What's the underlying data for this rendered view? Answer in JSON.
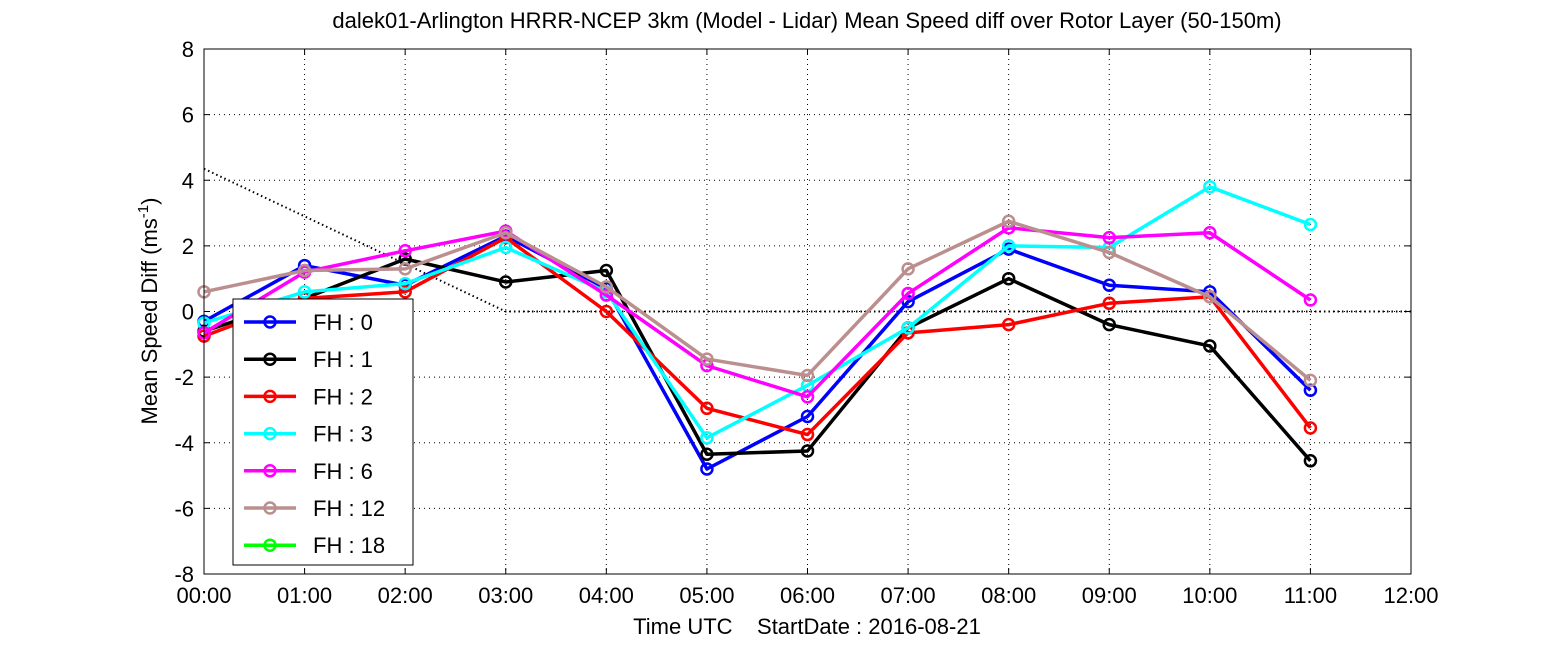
{
  "chart_data": {
    "type": "line",
    "title": "dalek01-Arlington HRRR-NCEP 3km (Model - Lidar) Mean Speed diff over Rotor Layer (50-150m)",
    "xlabel": "Time UTC    StartDate : 2016-08-21",
    "ylabel": "Mean Speed Diff (ms",
    "ylabel_sup": "-1",
    "ylabel_close": ")",
    "x_ticks": [
      "00:00",
      "01:00",
      "02:00",
      "03:00",
      "04:00",
      "05:00",
      "06:00",
      "07:00",
      "08:00",
      "09:00",
      "10:00",
      "11:00",
      "12:00"
    ],
    "y_ticks": [
      "-8",
      "-6",
      "-4",
      "-2",
      "0",
      "2",
      "4",
      "6",
      "8"
    ],
    "xlim": [
      0,
      12
    ],
    "ylim": [
      -8,
      8
    ],
    "grid": true,
    "legend_position": "lower-left",
    "reference_line": {
      "x": [
        0,
        3,
        12
      ],
      "y": [
        4.35,
        0,
        0
      ]
    },
    "series": [
      {
        "name": "FH : 0",
        "color": "#0000ff",
        "x": [
          0,
          1,
          2,
          3,
          4,
          5,
          6,
          7,
          8,
          9,
          10,
          11
        ],
        "y": [
          -0.3,
          1.4,
          0.8,
          2.3,
          0.7,
          -4.8,
          -3.2,
          0.3,
          1.9,
          0.8,
          0.6,
          -2.4
        ]
      },
      {
        "name": "FH : 1",
        "color": "#000000",
        "x": [
          0,
          1,
          2,
          3,
          4,
          5,
          6,
          7,
          8,
          9,
          10,
          11
        ],
        "y": [
          -0.6,
          0.4,
          1.6,
          0.9,
          1.25,
          -4.35,
          -4.25,
          -0.5,
          1.0,
          -0.4,
          -1.05,
          -4.55
        ]
      },
      {
        "name": "FH : 2",
        "color": "#ff0000",
        "x": [
          0,
          1,
          2,
          3,
          4,
          5,
          6,
          7,
          8,
          9,
          10,
          11
        ],
        "y": [
          -0.75,
          0.4,
          0.6,
          2.25,
          0.0,
          -2.95,
          -3.75,
          -0.65,
          -0.4,
          0.25,
          0.45,
          -3.55
        ]
      },
      {
        "name": "FH : 3",
        "color": "#00ffff",
        "x": [
          0,
          1,
          2,
          3,
          4,
          5,
          6,
          7,
          8,
          9,
          10,
          11
        ],
        "y": [
          -0.35,
          0.6,
          0.85,
          1.95,
          0.6,
          -3.85,
          -2.25,
          -0.5,
          2.0,
          1.95,
          3.8,
          2.65
        ]
      },
      {
        "name": "FH : 6",
        "color": "#ff00ff",
        "x": [
          0,
          1,
          2,
          3,
          4,
          5,
          6,
          7,
          8,
          9,
          10,
          11
        ],
        "y": [
          -0.65,
          1.2,
          1.85,
          2.45,
          0.5,
          -1.65,
          -2.6,
          0.55,
          2.55,
          2.25,
          2.4,
          0.35
        ]
      },
      {
        "name": "FH : 12",
        "color": "#bc8f8f",
        "x": [
          0,
          1,
          2,
          3,
          4,
          5,
          6,
          7,
          8,
          9,
          10,
          11
        ],
        "y": [
          0.6,
          1.25,
          1.3,
          2.4,
          0.75,
          -1.45,
          -1.95,
          1.3,
          2.75,
          1.8,
          0.45,
          -2.1
        ]
      },
      {
        "name": "FH : 18",
        "color": "#00ff00",
        "x": [],
        "y": []
      }
    ]
  }
}
